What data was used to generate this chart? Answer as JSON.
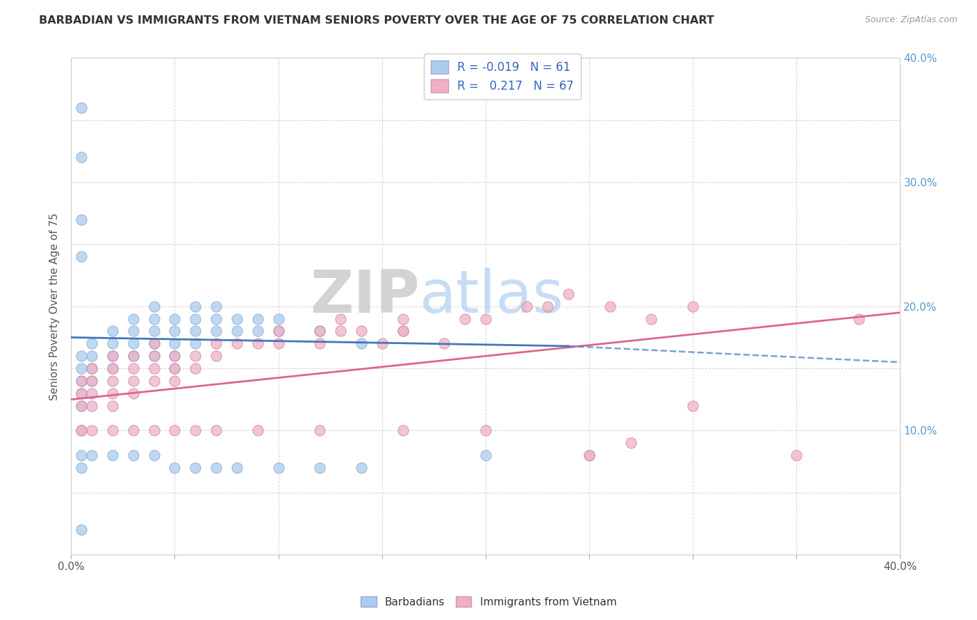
{
  "title": "BARBADIAN VS IMMIGRANTS FROM VIETNAM SENIORS POVERTY OVER THE AGE OF 75 CORRELATION CHART",
  "source": "Source: ZipAtlas.com",
  "ylabel": "Seniors Poverty Over the Age of 75",
  "xlim": [
    0.0,
    0.4
  ],
  "ylim": [
    0.0,
    0.4
  ],
  "xticks": [
    0.0,
    0.05,
    0.1,
    0.15,
    0.2,
    0.25,
    0.3,
    0.35,
    0.4
  ],
  "yticks": [
    0.0,
    0.05,
    0.1,
    0.15,
    0.2,
    0.25,
    0.3,
    0.35,
    0.4
  ],
  "barbadian_color": "#aaccee",
  "vietnam_color": "#f0b0c8",
  "barbadian_line_color": "#4477bb",
  "vietnam_line_color": "#dd6688",
  "watermark_ZIP": "ZIP",
  "watermark_atlas": "atlas",
  "barbadian_scatter_x": [
    0.005,
    0.005,
    0.005,
    0.005,
    0.005,
    0.01,
    0.01,
    0.01,
    0.01,
    0.02,
    0.02,
    0.02,
    0.02,
    0.03,
    0.03,
    0.03,
    0.03,
    0.04,
    0.04,
    0.04,
    0.04,
    0.04,
    0.05,
    0.05,
    0.05,
    0.05,
    0.05,
    0.06,
    0.06,
    0.06,
    0.06,
    0.07,
    0.07,
    0.07,
    0.08,
    0.08,
    0.09,
    0.09,
    0.1,
    0.1,
    0.12,
    0.14,
    0.005,
    0.005,
    0.01,
    0.02,
    0.03,
    0.04,
    0.05,
    0.06,
    0.07,
    0.08,
    0.1,
    0.12,
    0.14,
    0.2,
    0.005,
    0.005,
    0.005,
    0.005,
    0.005
  ],
  "barbadian_scatter_y": [
    0.16,
    0.15,
    0.14,
    0.13,
    0.12,
    0.17,
    0.16,
    0.15,
    0.14,
    0.18,
    0.17,
    0.16,
    0.15,
    0.19,
    0.18,
    0.17,
    0.16,
    0.2,
    0.19,
    0.18,
    0.17,
    0.16,
    0.19,
    0.18,
    0.17,
    0.16,
    0.15,
    0.2,
    0.19,
    0.18,
    0.17,
    0.2,
    0.19,
    0.18,
    0.19,
    0.18,
    0.19,
    0.18,
    0.19,
    0.18,
    0.18,
    0.17,
    0.08,
    0.07,
    0.08,
    0.08,
    0.08,
    0.08,
    0.07,
    0.07,
    0.07,
    0.07,
    0.07,
    0.07,
    0.07,
    0.08,
    0.36,
    0.32,
    0.27,
    0.24,
    0.02
  ],
  "vietnam_scatter_x": [
    0.005,
    0.005,
    0.005,
    0.01,
    0.01,
    0.01,
    0.01,
    0.02,
    0.02,
    0.02,
    0.02,
    0.02,
    0.03,
    0.03,
    0.03,
    0.03,
    0.04,
    0.04,
    0.04,
    0.04,
    0.05,
    0.05,
    0.05,
    0.06,
    0.06,
    0.07,
    0.07,
    0.08,
    0.09,
    0.1,
    0.1,
    0.12,
    0.12,
    0.14,
    0.15,
    0.16,
    0.18,
    0.2,
    0.22,
    0.24,
    0.26,
    0.28,
    0.3,
    0.13,
    0.13,
    0.16,
    0.16,
    0.19,
    0.23,
    0.25,
    0.27,
    0.005,
    0.005,
    0.01,
    0.02,
    0.03,
    0.04,
    0.05,
    0.06,
    0.07,
    0.09,
    0.12,
    0.16,
    0.2,
    0.25,
    0.3,
    0.35,
    0.38
  ],
  "vietnam_scatter_y": [
    0.14,
    0.13,
    0.12,
    0.15,
    0.14,
    0.13,
    0.12,
    0.16,
    0.15,
    0.14,
    0.13,
    0.12,
    0.16,
    0.15,
    0.14,
    0.13,
    0.17,
    0.16,
    0.15,
    0.14,
    0.16,
    0.15,
    0.14,
    0.16,
    0.15,
    0.17,
    0.16,
    0.17,
    0.17,
    0.18,
    0.17,
    0.18,
    0.17,
    0.18,
    0.17,
    0.18,
    0.17,
    0.19,
    0.2,
    0.21,
    0.2,
    0.19,
    0.2,
    0.19,
    0.18,
    0.19,
    0.18,
    0.19,
    0.2,
    0.08,
    0.09,
    0.1,
    0.1,
    0.1,
    0.1,
    0.1,
    0.1,
    0.1,
    0.1,
    0.1,
    0.1,
    0.1,
    0.1,
    0.1,
    0.08,
    0.12,
    0.08,
    0.19
  ]
}
